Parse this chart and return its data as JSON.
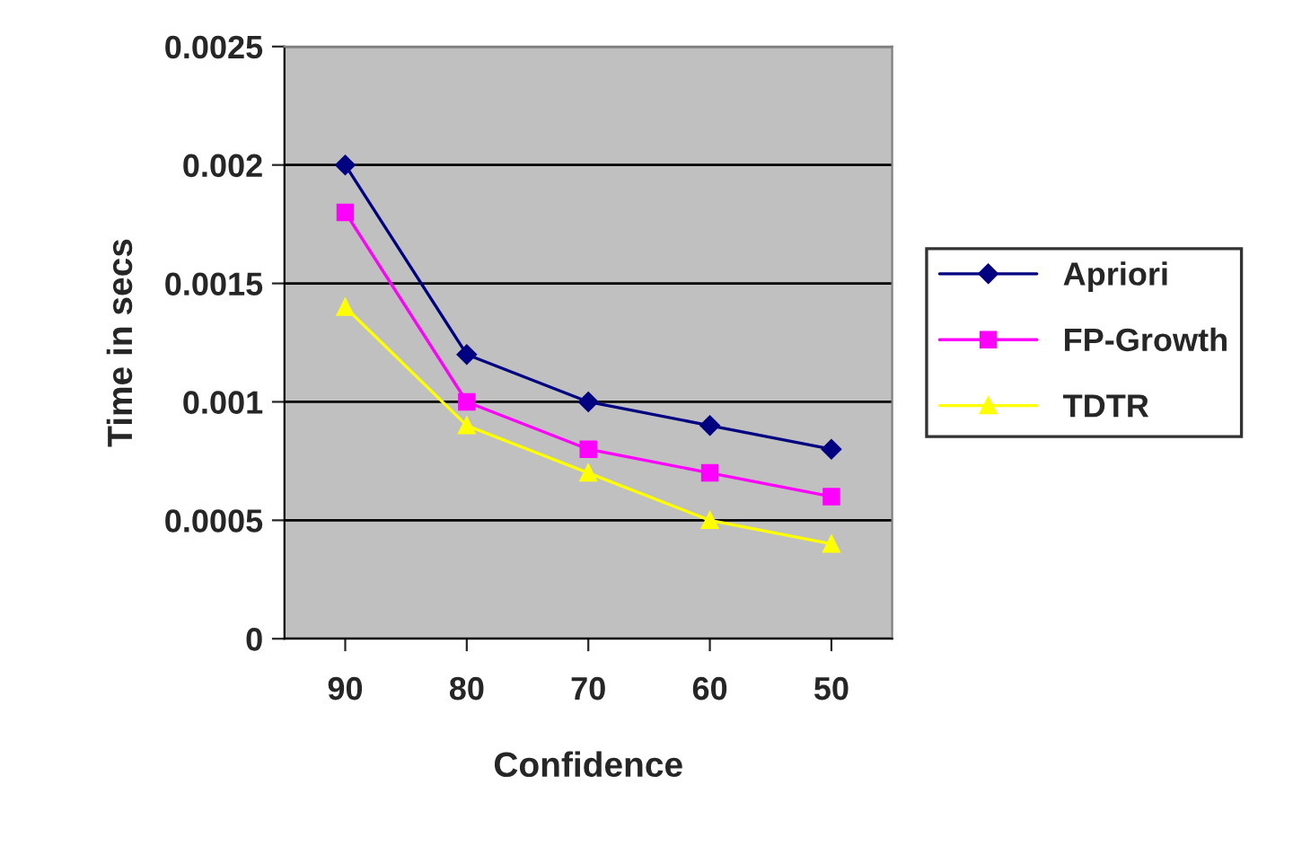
{
  "chart_data": {
    "type": "line",
    "xlabel": "Confidence",
    "ylabel": "Time in secs",
    "categories": [
      "90",
      "80",
      "70",
      "60",
      "50"
    ],
    "series": [
      {
        "name": "Apriori",
        "color": "#000080",
        "marker": "diamond",
        "values": [
          0.002,
          0.0012,
          0.001,
          0.0009,
          0.0008
        ]
      },
      {
        "name": "FP-Growth",
        "color": "#ff00ff",
        "marker": "square",
        "values": [
          0.0018,
          0.001,
          0.0008,
          0.0007,
          0.0006
        ]
      },
      {
        "name": "TDTR",
        "color": "#ffff00",
        "marker": "triangle",
        "values": [
          0.0014,
          0.0009,
          0.0007,
          0.0005,
          0.0004
        ]
      }
    ],
    "ylim": [
      0,
      0.0025
    ],
    "yticks": [
      0,
      0.0005,
      0.001,
      0.0015,
      0.002,
      0.0025
    ],
    "grid": "y",
    "legend": "right",
    "line_style": "solid"
  }
}
